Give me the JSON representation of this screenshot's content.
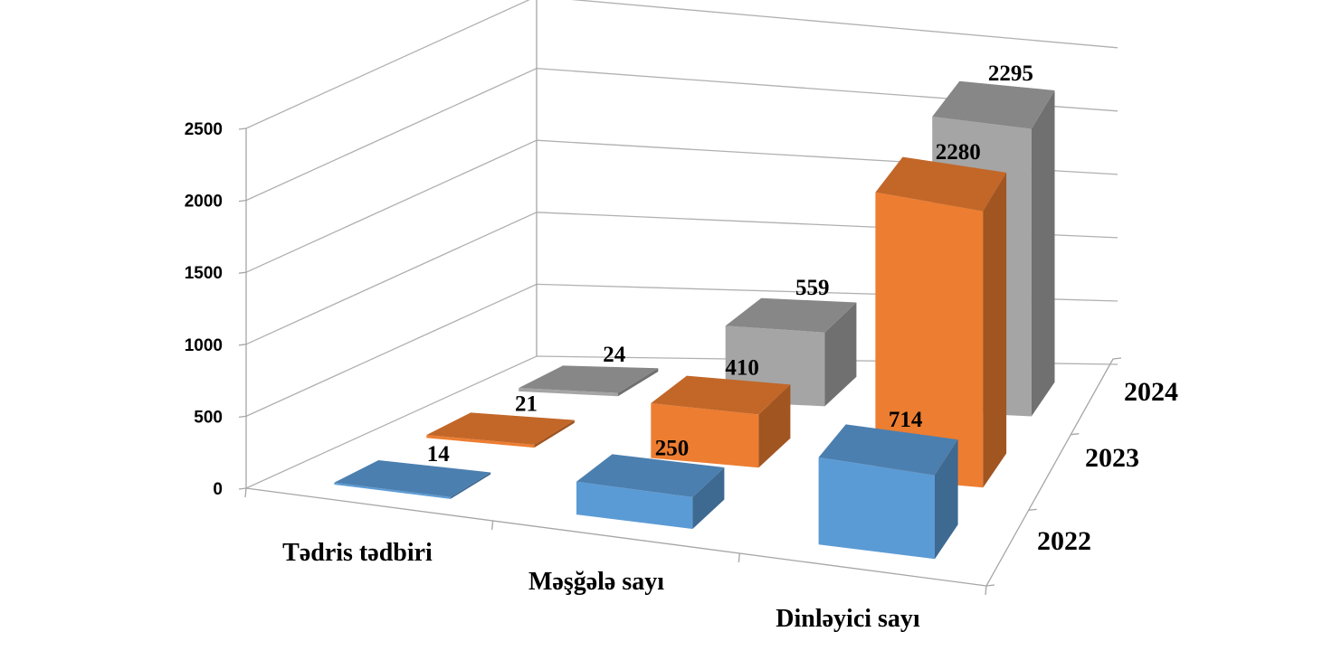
{
  "chart_data": {
    "type": "bar",
    "subtype": "3d-column",
    "title": "",
    "xlabel": "",
    "ylabel": "",
    "categories": [
      "Tədris tədbiri",
      "Məşğələ sayı",
      "Dinləyici sayı"
    ],
    "series": [
      {
        "name": "2022",
        "color": "#5b9bd5",
        "values": [
          14,
          250,
          714
        ]
      },
      {
        "name": "2023",
        "color": "#ed7d31",
        "values": [
          21,
          410,
          2280
        ]
      },
      {
        "name": "2024",
        "color": "#a5a5a5",
        "values": [
          24,
          559,
          2295
        ]
      }
    ],
    "y_ticks": [
      "0",
      "500",
      "1000",
      "1500",
      "2000",
      "2500"
    ],
    "ylim": [
      0,
      2500
    ],
    "grid": true,
    "legend": "none"
  }
}
